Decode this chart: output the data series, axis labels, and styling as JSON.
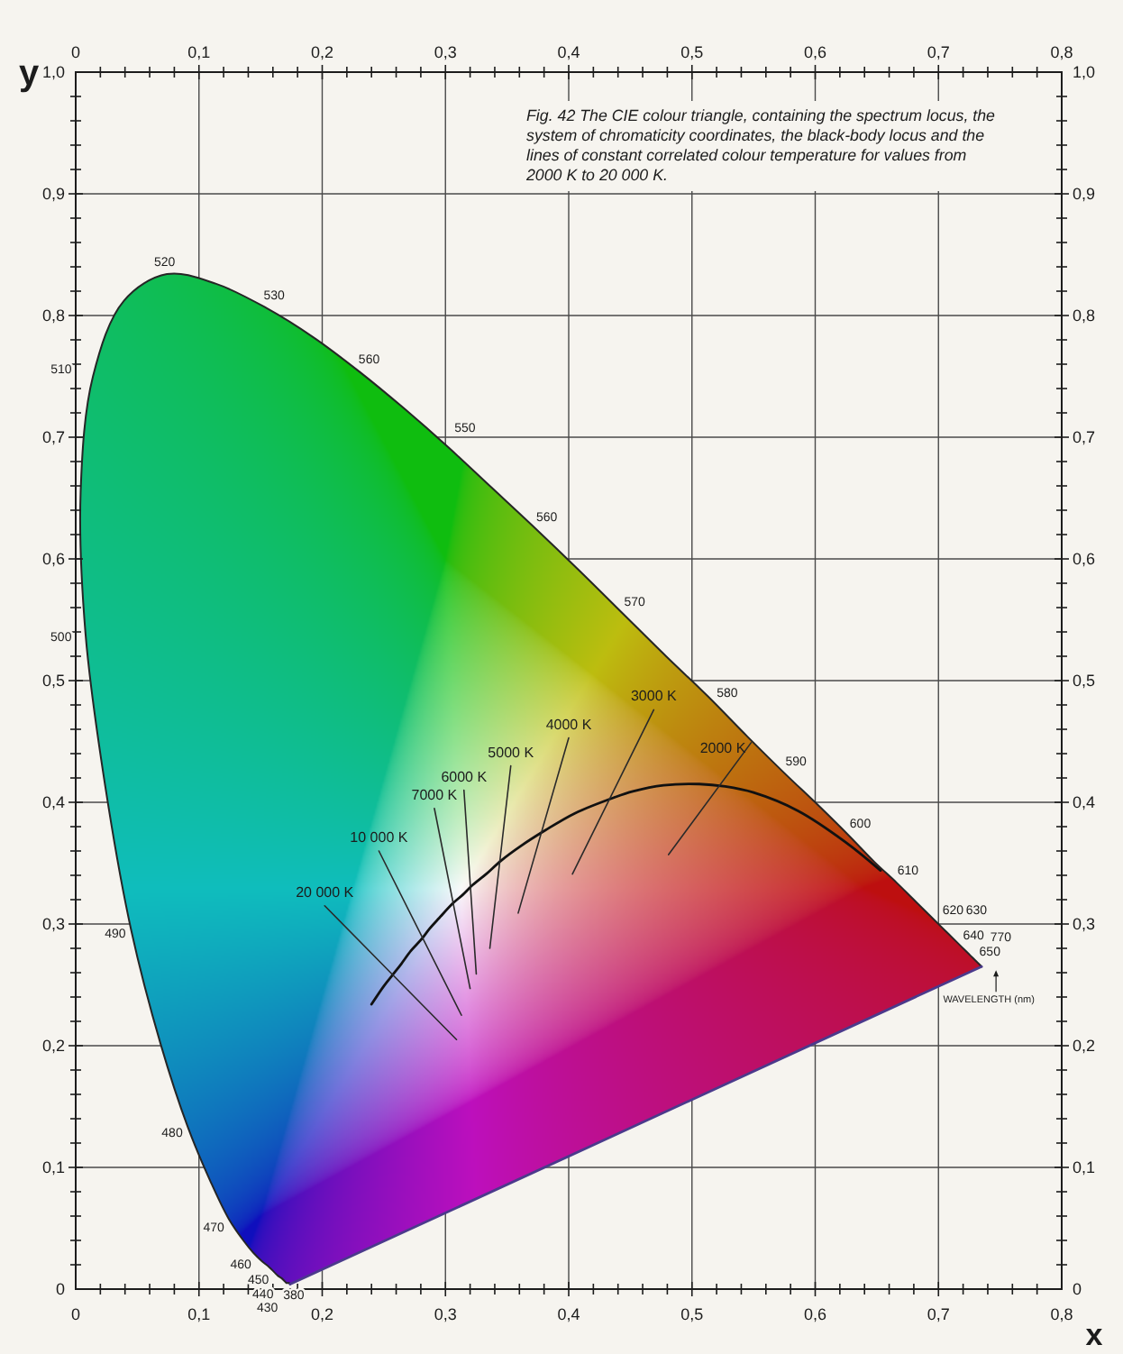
{
  "chart_data": {
    "type": "line",
    "title": "Fig. 42 The CIE colour triangle, containing the spectrum locus, the system of chromaticity coordinates, the black-body locus and the lines of constant correlated colour temperature for values from 2000 K to 20 000 K.",
    "xlabel": "x",
    "ylabel": "y",
    "xlim": [
      0,
      0.8
    ],
    "xticks": [
      0,
      {
        "value": 0.02,
        "label": null
      },
      {
        "value": 0.04,
        "label": null
      },
      {
        "value": 0.06,
        "label": null
      },
      {
        "value": 0.08,
        "label": null
      },
      {
        "value": 0.1,
        "label": "0,1"
      },
      {
        "value": 0.12,
        "label": null
      },
      {
        "value": 0.14,
        "label": null
      },
      {
        "value": 0.16,
        "label": null
      },
      {
        "value": 0.18,
        "label": null
      },
      {
        "value": 0.2,
        "label": "0,2"
      },
      {
        "value": 0.22,
        "label": null
      },
      {
        "value": 0.24,
        "label": null
      },
      {
        "value": 0.26,
        "label": null
      },
      {
        "value": 0.28,
        "label": null
      },
      {
        "value": 0.3,
        "label": "0,3"
      },
      {
        "value": 0.32,
        "label": null
      },
      {
        "value": 0.34,
        "label": null
      },
      {
        "value": 0.36,
        "label": null
      },
      {
        "value": 0.38,
        "label": null
      },
      {
        "value": 0.4,
        "label": "0,4"
      },
      {
        "value": 0.42,
        "label": null
      },
      {
        "value": 0.44,
        "label": null
      },
      {
        "value": 0.46,
        "label": null
      },
      {
        "value": 0.48,
        "label": null
      },
      {
        "value": 0.5,
        "label": "0,5"
      },
      {
        "value": 0.52,
        "label": null
      },
      {
        "value": 0.54,
        "label": null
      },
      {
        "value": 0.56,
        "label": null
      },
      {
        "value": 0.58,
        "label": null
      },
      {
        "value": 0.6,
        "label": "0,6"
      },
      {
        "value": 0.62,
        "label": null
      },
      {
        "value": 0.64,
        "label": null
      },
      {
        "value": 0.66,
        "label": null
      },
      {
        "value": 0.68,
        "label": null
      },
      {
        "value": 0.7,
        "label": "0,7"
      },
      {
        "value": 0.72,
        "label": null
      },
      {
        "value": 0.74,
        "label": null
      },
      {
        "value": 0.76,
        "label": null
      },
      {
        "value": 0.78,
        "label": null
      },
      {
        "value": 0.8,
        "label": "0,8"
      }
    ],
    "x2lim": [
      0,
      0.8
    ],
    "x2ticks": [
      0,
      {
        "value": 0.02,
        "label": null
      },
      {
        "value": 0.04,
        "label": null
      },
      {
        "value": 0.06,
        "label": null
      },
      {
        "value": 0.08,
        "label": null
      },
      {
        "value": 0.1,
        "label": "0,1"
      },
      {
        "value": 0.12,
        "label": null
      },
      {
        "value": 0.14,
        "label": null
      },
      {
        "value": 0.16,
        "label": null
      },
      {
        "value": 0.18,
        "label": null
      },
      {
        "value": 0.2,
        "label": "0,2"
      },
      {
        "value": 0.22,
        "label": null
      },
      {
        "value": 0.24,
        "label": null
      },
      {
        "value": 0.26,
        "label": null
      },
      {
        "value": 0.28,
        "label": null
      },
      {
        "value": 0.3,
        "label": "0,3"
      },
      {
        "value": 0.32,
        "label": null
      },
      {
        "value": 0.34,
        "label": null
      },
      {
        "value": 0.36,
        "label": null
      },
      {
        "value": 0.38,
        "label": null
      },
      {
        "value": 0.4,
        "label": "0,4"
      },
      {
        "value": 0.42,
        "label": null
      },
      {
        "value": 0.44,
        "label": null
      },
      {
        "value": 0.46,
        "label": null
      },
      {
        "value": 0.48,
        "label": null
      },
      {
        "value": 0.5,
        "label": "0,5"
      },
      {
        "value": 0.52,
        "label": null
      },
      {
        "value": 0.54,
        "label": null
      },
      {
        "value": 0.56,
        "label": null
      },
      {
        "value": 0.58,
        "label": null
      },
      {
        "value": 0.6,
        "label": "0,6"
      },
      {
        "value": 0.62,
        "label": null
      },
      {
        "value": 0.64,
        "label": null
      },
      {
        "value": 0.66,
        "label": null
      },
      {
        "value": 0.68,
        "label": null
      },
      {
        "value": 0.7,
        "label": "0,7"
      },
      {
        "value": 0.72,
        "label": null
      },
      {
        "value": 0.74,
        "label": null
      },
      {
        "value": 0.76,
        "label": null
      },
      {
        "value": 0.78,
        "label": null
      },
      {
        "value": 0.8,
        "label": "0,8"
      }
    ],
    "ylim": [
      0,
      1
    ],
    "yticks": [
      0,
      {
        "value": 0.02,
        "label": null
      },
      {
        "value": 0.04,
        "label": null
      },
      {
        "value": 0.06,
        "label": null
      },
      {
        "value": 0.08,
        "label": null
      },
      {
        "value": 0.1,
        "label": "0,1"
      },
      {
        "value": 0.12,
        "label": null
      },
      {
        "value": 0.14,
        "label": null
      },
      {
        "value": 0.16,
        "label": null
      },
      {
        "value": 0.18,
        "label": null
      },
      {
        "value": 0.2,
        "label": "0,2"
      },
      {
        "value": 0.22,
        "label": null
      },
      {
        "value": 0.24,
        "label": null
      },
      {
        "value": 0.26,
        "label": null
      },
      {
        "value": 0.28,
        "label": null
      },
      {
        "value": 0.3,
        "label": "0,3"
      },
      {
        "value": 0.32,
        "label": null
      },
      {
        "value": 0.34,
        "label": null
      },
      {
        "value": 0.36,
        "label": null
      },
      {
        "value": 0.38,
        "label": null
      },
      {
        "value": 0.4,
        "label": "0,4"
      },
      {
        "value": 0.42,
        "label": null
      },
      {
        "value": 0.44,
        "label": null
      },
      {
        "value": 0.46,
        "label": null
      },
      {
        "value": 0.48,
        "label": null
      },
      {
        "value": 0.5,
        "label": "0,5"
      },
      {
        "value": 0.52,
        "label": null
      },
      {
        "value": 0.54,
        "label": null
      },
      {
        "value": 0.56,
        "label": null
      },
      {
        "value": 0.58,
        "label": null
      },
      {
        "value": 0.6,
        "label": "0,6"
      },
      {
        "value": 0.62,
        "label": null
      },
      {
        "value": 0.64,
        "label": null
      },
      {
        "value": 0.66,
        "label": null
      },
      {
        "value": 0.68,
        "label": null
      },
      {
        "value": 0.7,
        "label": "0,7"
      },
      {
        "value": 0.72,
        "label": null
      },
      {
        "value": 0.74,
        "label": null
      },
      {
        "value": 0.76,
        "label": null
      },
      {
        "value": 0.78,
        "label": null
      },
      {
        "value": 0.8,
        "label": "0,8"
      },
      {
        "value": 0.82,
        "label": null
      },
      {
        "value": 0.84,
        "label": null
      },
      {
        "value": 0.86,
        "label": null
      },
      {
        "value": 0.88,
        "label": null
      },
      {
        "value": 0.9,
        "label": "0,9"
      },
      {
        "value": 0.92,
        "label": null
      },
      {
        "value": 0.94,
        "label": null
      },
      {
        "value": 0.96,
        "label": null
      },
      {
        "value": 0.98,
        "label": null
      },
      {
        "value": 1,
        "label": "1,0"
      }
    ],
    "y2lim": [
      0,
      1
    ],
    "y2ticks": [
      0,
      {
        "value": 0.02,
        "label": null
      },
      {
        "value": 0.04,
        "label": null
      },
      {
        "value": 0.06,
        "label": null
      },
      {
        "value": 0.08,
        "label": null
      },
      {
        "value": 0.1,
        "label": "0,1"
      },
      {
        "value": 0.12,
        "label": null
      },
      {
        "value": 0.14,
        "label": null
      },
      {
        "value": 0.16,
        "label": null
      },
      {
        "value": 0.18,
        "label": null
      },
      {
        "value": 0.2,
        "label": "0,2"
      },
      {
        "value": 0.22,
        "label": null
      },
      {
        "value": 0.24,
        "label": null
      },
      {
        "value": 0.26,
        "label": null
      },
      {
        "value": 0.28,
        "label": null
      },
      {
        "value": 0.3,
        "label": "0,3"
      },
      {
        "value": 0.32,
        "label": null
      },
      {
        "value": 0.34,
        "label": null
      },
      {
        "value": 0.36,
        "label": null
      },
      {
        "value": 0.38,
        "label": null
      },
      {
        "value": 0.4,
        "label": "0,4"
      },
      {
        "value": 0.42,
        "label": null
      },
      {
        "value": 0.44,
        "label": null
      },
      {
        "value": 0.46,
        "label": null
      },
      {
        "value": 0.48,
        "label": null
      },
      {
        "value": 0.5,
        "label": "0,5"
      },
      {
        "value": 0.52,
        "label": null
      },
      {
        "value": 0.54,
        "label": null
      },
      {
        "value": 0.56,
        "label": null
      },
      {
        "value": 0.58,
        "label": null
      },
      {
        "value": 0.6,
        "label": "0,6"
      },
      {
        "value": 0.62,
        "label": null
      },
      {
        "value": 0.64,
        "label": null
      },
      {
        "value": 0.66,
        "label": null
      },
      {
        "value": 0.68,
        "label": null
      },
      {
        "value": 0.7,
        "label": "0,7"
      },
      {
        "value": 0.72,
        "label": null
      },
      {
        "value": 0.74,
        "label": null
      },
      {
        "value": 0.76,
        "label": null
      },
      {
        "value": 0.78,
        "label": null
      },
      {
        "value": 0.8,
        "label": "0,8"
      },
      {
        "value": 0.82,
        "label": null
      },
      {
        "value": 0.84,
        "label": null
      },
      {
        "value": 0.86,
        "label": null
      },
      {
        "value": 0.88,
        "label": null
      },
      {
        "value": 0.9,
        "label": "0,9"
      },
      {
        "value": 0.92,
        "label": null
      },
      {
        "value": 0.94,
        "label": null
      },
      {
        "value": 0.96,
        "label": null
      },
      {
        "value": 0.98,
        "label": null
      },
      {
        "value": 1,
        "label": "1,0"
      }
    ],
    "grid": true,
    "series": [
      {
        "color": "#262626",
        "x": [
          0.174,
          0.173,
          0.171,
          0.17,
          0.169,
          0.167,
          0.164,
          0.161,
          0.157,
          0.151,
          0.144,
          0.136,
          0.124,
          0.11,
          0.091,
          0.069,
          0.045,
          0.024,
          0.008,
          0.004,
          0.014,
          0.039,
          0.074,
          0.114,
          0.155,
          0.193,
          0.23,
          0.266,
          0.302,
          0.337,
          0.373,
          0.409,
          0.444,
          0.479,
          0.513,
          0.545,
          0.575,
          0.603,
          0.627,
          0.648,
          0.666,
          0.68,
          0.692,
          0.701,
          0.708,
          0.714,
          0.719,
          0.723,
          0.726,
          0.73,
          0.733,
          0.735
        ],
        "values": [
          0.004,
          0.005,
          0.005,
          0.006,
          0.007,
          0.009,
          0.011,
          0.014,
          0.018,
          0.023,
          0.03,
          0.04,
          0.058,
          0.087,
          0.133,
          0.201,
          0.295,
          0.413,
          0.538,
          0.655,
          0.75,
          0.812,
          0.834,
          0.826,
          0.806,
          0.782,
          0.754,
          0.724,
          0.692,
          0.659,
          0.625,
          0.59,
          0.555,
          0.52,
          0.487,
          0.454,
          0.424,
          0.397,
          0.373,
          0.351,
          0.334,
          0.32,
          0.308,
          0.299,
          0.292,
          0.286,
          0.281,
          0.277,
          0.274,
          0.27,
          0.267,
          0.265
        ]
      },
      {
        "color": "#4b3a8c",
        "x": [
          0.174,
          0.735
        ],
        "values": [
          0.004,
          0.265
        ]
      },
      {
        "color": "#111111",
        "x": [
          0.653,
          0.625,
          0.586,
          0.55,
          0.527,
          0.506,
          0.477,
          0.452,
          0.437,
          0.405,
          0.381,
          0.361,
          0.345,
          0.333,
          0.322,
          0.314,
          0.306,
          0.295,
          0.287,
          0.281,
          0.272,
          0.264,
          0.257,
          0.25,
          0.24
        ],
        "values": [
          0.344,
          0.367,
          0.393,
          0.408,
          0.413,
          0.415,
          0.414,
          0.409,
          0.404,
          0.391,
          0.377,
          0.364,
          0.352,
          0.341,
          0.332,
          0.324,
          0.317,
          0.305,
          0.296,
          0.288,
          0.278,
          0.267,
          0.258,
          0.249,
          0.234
        ]
      },
      {
        "name": "2000 K",
        "color": "#2a2a2a",
        "x": [
          0.548,
          0.481
        ],
        "values": [
          0.449,
          0.357
        ]
      },
      {
        "name": "3000 K",
        "color": "#2a2a2a",
        "x": [
          0.469,
          0.403
        ],
        "values": [
          0.476,
          0.341
        ]
      },
      {
        "name": "4000 K",
        "color": "#2a2a2a",
        "x": [
          0.4,
          0.359
        ],
        "values": [
          0.453,
          0.309
        ]
      },
      {
        "name": "5000 K",
        "color": "#2a2a2a",
        "x": [
          0.353,
          0.336
        ],
        "values": [
          0.43,
          0.28
        ]
      },
      {
        "name": "6000 K",
        "color": "#2a2a2a",
        "x": [
          0.315,
          0.325
        ],
        "values": [
          0.41,
          0.259
        ]
      },
      {
        "name": "7000 K",
        "color": "#2a2a2a",
        "x": [
          0.291,
          0.32
        ],
        "values": [
          0.395,
          0.247
        ]
      },
      {
        "name": "10 000 K",
        "color": "#2a2a2a",
        "x": [
          0.246,
          0.313
        ],
        "values": [
          0.36,
          0.225
        ]
      },
      {
        "name": "20 000 K",
        "color": "#2a2a2a",
        "x": [
          0.202,
          0.309
        ],
        "values": [
          0.315,
          0.205
        ]
      }
    ],
    "annotations": [
      {
        "text": "520",
        "x": 0.074,
        "y": 0.834
      },
      {
        "text": "530",
        "x": 0.155,
        "y": 0.806
      },
      {
        "text": "560",
        "x": 0.23,
        "y": 0.754
      },
      {
        "text": "550",
        "x": 0.302,
        "y": 0.692
      },
      {
        "text": "560",
        "x": 0.373,
        "y": 0.625
      },
      {
        "text": "570",
        "x": 0.444,
        "y": 0.555
      },
      {
        "text": "580",
        "x": 0.513,
        "y": 0.487
      },
      {
        "text": "590",
        "x": 0.575,
        "y": 0.424
      },
      {
        "text": "600",
        "x": 0.627,
        "y": 0.373
      },
      {
        "text": "610",
        "x": 0.666,
        "y": 0.334
      },
      {
        "text": "620",
        "x": 0.692,
        "y": 0.308
      },
      {
        "text": "630",
        "x": 0.708,
        "y": 0.292
      },
      {
        "text": "640",
        "x": 0.719,
        "y": 0.281
      },
      {
        "text": "650",
        "x": 0.726,
        "y": 0.274
      },
      {
        "text": "770",
        "x": 0.735,
        "y": 0.265
      },
      {
        "text": "510",
        "x": 0.014,
        "y": 0.75
      },
      {
        "text": "500",
        "x": 0.008,
        "y": 0.538
      },
      {
        "text": "490",
        "x": 0.045,
        "y": 0.295
      },
      {
        "text": "480",
        "x": 0.091,
        "y": 0.133
      },
      {
        "text": "470",
        "x": 0.124,
        "y": 0.058
      },
      {
        "text": "460",
        "x": 0.144,
        "y": 0.03
      },
      {
        "text": "450",
        "x": 0.157,
        "y": 0.018
      },
      {
        "text": "440",
        "x": 0.164,
        "y": 0.011
      },
      {
        "text": "430",
        "x": 0.169,
        "y": 0.007
      },
      {
        "text": "380",
        "x": 0.174,
        "y": 0.004
      },
      "WAVELENGTH (nm)"
    ]
  }
}
